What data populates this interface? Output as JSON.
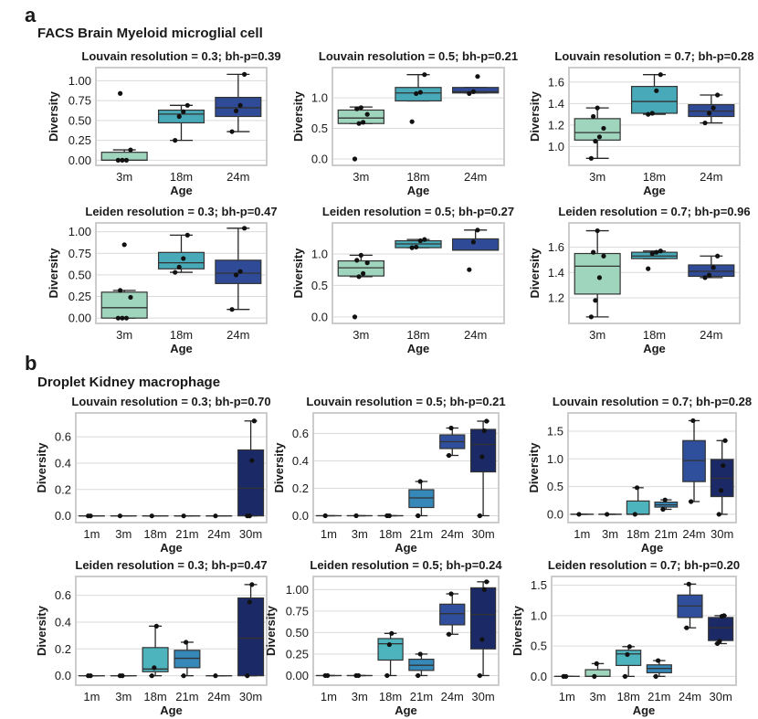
{
  "figure": {
    "sections": [
      {
        "letter": "a",
        "title": "FACS Brain Myeloid microglial cell"
      },
      {
        "letter": "b",
        "title": "Droplet Kidney macrophage"
      }
    ]
  },
  "colors": {
    "1m": "#c7e9c0",
    "3m": "#9fd5bd",
    "18m": "#4db3bd",
    "21m": "#3688b9",
    "24m": "#2f4e9c",
    "30m": "#1b2a66",
    "a_3m": "#9fd5bd",
    "a_18m": "#48aab8",
    "a_24m": "#2f4b98",
    "grid": "#d9d9d9",
    "frame": "#cccccc"
  },
  "chart_data": [
    {
      "id": "a-louvain-0.3",
      "section": "a",
      "type": "box",
      "title": "Louvain resolution = 0.3; bh-p=0.39",
      "xlabel": "Age",
      "ylabel": "Diversity",
      "categories": [
        "3m",
        "18m",
        "24m"
      ],
      "yticks": [
        0.0,
        0.25,
        0.5,
        0.75,
        1.0
      ],
      "ytick_labels": [
        "0.00",
        "0.25",
        "0.50",
        "0.75",
        "1.00"
      ],
      "ylim": [
        -0.03,
        1.13
      ],
      "grid": true,
      "boxes": [
        {
          "q1": 0.0,
          "median": 0.0,
          "q3": 0.1,
          "whisker_low": 0.0,
          "whisker_high": 0.13,
          "points": [
            0.0,
            0.0,
            0.0,
            0.13,
            0.84
          ]
        },
        {
          "q1": 0.47,
          "median": 0.58,
          "q3": 0.63,
          "whisker_low": 0.25,
          "whisker_high": 0.69,
          "points": [
            0.25,
            0.55,
            0.61,
            0.69
          ]
        },
        {
          "q1": 0.55,
          "median": 0.66,
          "q3": 0.79,
          "whisker_low": 0.36,
          "whisker_high": 1.08,
          "points": [
            0.36,
            0.62,
            0.69,
            1.08
          ]
        }
      ]
    },
    {
      "id": "a-louvain-0.5",
      "section": "a",
      "type": "box",
      "title": "Louvain resolution = 0.5; bh-p=0.21",
      "xlabel": "Age",
      "ylabel": "Diversity",
      "categories": [
        "3m",
        "18m",
        "24m"
      ],
      "yticks": [
        0.0,
        0.5,
        1.0
      ],
      "ytick_labels": [
        "0.0",
        "0.5",
        "1.0"
      ],
      "ylim": [
        -0.06,
        1.45
      ],
      "grid": true,
      "boxes": [
        {
          "q1": 0.58,
          "median": 0.67,
          "q3": 0.8,
          "whisker_low": 0.58,
          "whisker_high": 0.85,
          "points": [
            0.0,
            0.58,
            0.6,
            0.73,
            0.82,
            0.84
          ]
        },
        {
          "q1": 0.95,
          "median": 1.08,
          "q3": 1.17,
          "whisker_low": 0.95,
          "whisker_high": 1.38,
          "points": [
            0.61,
            1.07,
            1.09,
            1.38
          ]
        },
        {
          "q1": 1.08,
          "median": 1.1,
          "q3": 1.17,
          "whisker_low": 1.08,
          "whisker_high": 1.17,
          "points": [
            1.07,
            1.1,
            1.35
          ]
        }
      ]
    },
    {
      "id": "a-louvain-0.7",
      "section": "a",
      "type": "box",
      "title": "Louvain resolution = 0.7; bh-p=0.28",
      "xlabel": "Age",
      "ylabel": "Diversity",
      "categories": [
        "3m",
        "18m",
        "24m"
      ],
      "yticks": [
        1.0,
        1.2,
        1.4,
        1.6
      ],
      "ytick_labels": [
        "1.0",
        "1.2",
        "1.4",
        "1.6"
      ],
      "ylim": [
        0.85,
        1.71
      ],
      "grid": true,
      "boxes": [
        {
          "q1": 1.06,
          "median": 1.13,
          "q3": 1.26,
          "whisker_low": 0.89,
          "whisker_high": 1.36,
          "points": [
            0.89,
            1.05,
            1.09,
            1.17,
            1.28,
            1.36
          ]
        },
        {
          "q1": 1.31,
          "median": 1.42,
          "q3": 1.56,
          "whisker_low": 1.3,
          "whisker_high": 1.67,
          "points": [
            1.3,
            1.31,
            1.52,
            1.67
          ]
        },
        {
          "q1": 1.28,
          "median": 1.33,
          "q3": 1.39,
          "whisker_low": 1.22,
          "whisker_high": 1.48,
          "points": [
            1.22,
            1.31,
            1.36,
            1.48
          ]
        }
      ]
    },
    {
      "id": "a-leiden-0.3",
      "section": "a",
      "type": "box",
      "title": "Leiden resolution = 0.3; bh-p=0.47",
      "xlabel": "Age",
      "ylabel": "Diversity",
      "categories": [
        "3m",
        "18m",
        "24m"
      ],
      "yticks": [
        0.0,
        0.25,
        0.5,
        0.75,
        1.0
      ],
      "ytick_labels": [
        "0.00",
        "0.25",
        "0.50",
        "0.75",
        "1.00"
      ],
      "ylim": [
        -0.03,
        1.07
      ],
      "grid": true,
      "boxes": [
        {
          "q1": 0.0,
          "median": 0.12,
          "q3": 0.3,
          "whisker_low": 0.0,
          "whisker_high": 0.32,
          "points": [
            0.0,
            0.0,
            0.0,
            0.24,
            0.32,
            0.85
          ]
        },
        {
          "q1": 0.57,
          "median": 0.64,
          "q3": 0.76,
          "whisker_low": 0.53,
          "whisker_high": 0.96,
          "points": [
            0.53,
            0.59,
            0.69,
            0.96
          ]
        },
        {
          "q1": 0.4,
          "median": 0.52,
          "q3": 0.67,
          "whisker_low": 0.1,
          "whisker_high": 1.04,
          "points": [
            0.1,
            0.5,
            0.54,
            1.04
          ]
        }
      ]
    },
    {
      "id": "a-leiden-0.5",
      "section": "a",
      "type": "box",
      "title": "Leiden resolution = 0.5; bh-p=0.27",
      "xlabel": "Age",
      "ylabel": "Diversity",
      "categories": [
        "3m",
        "18m",
        "24m"
      ],
      "yticks": [
        0.0,
        0.5,
        1.0
      ],
      "ytick_labels": [
        "0.0",
        "0.5",
        "1.0"
      ],
      "ylim": [
        -0.06,
        1.45
      ],
      "grid": true,
      "boxes": [
        {
          "q1": 0.65,
          "median": 0.78,
          "q3": 0.89,
          "whisker_low": 0.64,
          "whisker_high": 0.98,
          "points": [
            0.0,
            0.64,
            0.69,
            0.86,
            0.9,
            0.98
          ]
        },
        {
          "q1": 1.1,
          "median": 1.16,
          "q3": 1.21,
          "whisker_low": 1.1,
          "whisker_high": 1.23,
          "points": [
            1.1,
            1.11,
            1.21,
            1.23
          ]
        },
        {
          "q1": 1.06,
          "median": 1.06,
          "q3": 1.24,
          "whisker_low": 1.06,
          "whisker_high": 1.38,
          "points": [
            0.75,
            1.19,
            1.38
          ]
        }
      ]
    },
    {
      "id": "a-leiden-0.7",
      "section": "a",
      "type": "box",
      "title": "Leiden resolution = 0.7; bh-p=0.96",
      "xlabel": "Age",
      "ylabel": "Diversity",
      "categories": [
        "3m",
        "18m",
        "24m"
      ],
      "yticks": [
        1.2,
        1.4,
        1.6
      ],
      "ytick_labels": [
        "1.2",
        "1.4",
        "1.6"
      ],
      "ylim": [
        1.02,
        1.77
      ],
      "grid": true,
      "boxes": [
        {
          "q1": 1.23,
          "median": 1.45,
          "q3": 1.55,
          "whisker_low": 1.05,
          "whisker_high": 1.73,
          "points": [
            1.05,
            1.18,
            1.36,
            1.53,
            1.56,
            1.73
          ]
        },
        {
          "q1": 1.51,
          "median": 1.53,
          "q3": 1.56,
          "whisker_low": 1.51,
          "whisker_high": 1.57,
          "points": [
            1.43,
            1.55,
            1.56,
            1.57
          ]
        },
        {
          "q1": 1.37,
          "median": 1.41,
          "q3": 1.46,
          "whisker_low": 1.36,
          "whisker_high": 1.53,
          "points": [
            1.36,
            1.38,
            1.44,
            1.53
          ]
        }
      ]
    },
    {
      "id": "b-louvain-0.3",
      "section": "b",
      "type": "box",
      "title": "Louvain resolution = 0.3; bh-p=0.70",
      "xlabel": "Age",
      "ylabel": "Diversity",
      "categories": [
        "1m",
        "3m",
        "18m",
        "21m",
        "24m",
        "30m"
      ],
      "yticks": [
        0.0,
        0.2,
        0.4,
        0.6
      ],
      "ytick_labels": [
        "0.0",
        "0.2",
        "0.4",
        "0.6"
      ],
      "ylim": [
        -0.03,
        0.76
      ],
      "grid": true,
      "boxes": [
        {
          "q1": 0.0,
          "median": 0.0,
          "q3": 0.0,
          "whisker_low": 0.0,
          "whisker_high": 0.0,
          "points": [
            0.0,
            0.0
          ]
        },
        {
          "q1": 0.0,
          "median": 0.0,
          "q3": 0.0,
          "whisker_low": 0.0,
          "whisker_high": 0.0,
          "points": [
            0.0
          ]
        },
        {
          "q1": 0.0,
          "median": 0.0,
          "q3": 0.0,
          "whisker_low": 0.0,
          "whisker_high": 0.0,
          "points": [
            0.0
          ]
        },
        {
          "q1": 0.0,
          "median": 0.0,
          "q3": 0.0,
          "whisker_low": 0.0,
          "whisker_high": 0.0,
          "points": [
            0.0
          ]
        },
        {
          "q1": 0.0,
          "median": 0.0,
          "q3": 0.0,
          "whisker_low": 0.0,
          "whisker_high": 0.0,
          "points": [
            0.0
          ]
        },
        {
          "q1": 0.0,
          "median": 0.21,
          "q3": 0.5,
          "whisker_low": 0.0,
          "whisker_high": 0.72,
          "points": [
            0.0,
            0.0,
            0.42,
            0.72
          ]
        }
      ]
    },
    {
      "id": "b-louvain-0.5",
      "section": "b",
      "type": "box",
      "title": "Louvain resolution = 0.5; bh-p=0.21",
      "xlabel": "Age",
      "ylabel": "Diversity",
      "categories": [
        "1m",
        "3m",
        "18m",
        "21m",
        "24m",
        "30m"
      ],
      "yticks": [
        0.0,
        0.2,
        0.4,
        0.6
      ],
      "ytick_labels": [
        "0.0",
        "0.2",
        "0.4",
        "0.6"
      ],
      "ylim": [
        -0.03,
        0.73
      ],
      "grid": true,
      "boxes": [
        {
          "q1": 0.0,
          "median": 0.0,
          "q3": 0.0,
          "whisker_low": 0.0,
          "whisker_high": 0.0,
          "points": [
            0.0
          ]
        },
        {
          "q1": 0.0,
          "median": 0.0,
          "q3": 0.0,
          "whisker_low": 0.0,
          "whisker_high": 0.0,
          "points": [
            0.0
          ]
        },
        {
          "q1": 0.0,
          "median": 0.0,
          "q3": 0.0,
          "whisker_low": 0.0,
          "whisker_high": 0.0,
          "points": [
            0.0,
            0.0
          ]
        },
        {
          "q1": 0.06,
          "median": 0.13,
          "q3": 0.19,
          "whisker_low": 0.0,
          "whisker_high": 0.25,
          "points": [
            0.0,
            0.25
          ]
        },
        {
          "q1": 0.49,
          "median": 0.54,
          "q3": 0.59,
          "whisker_low": 0.44,
          "whisker_high": 0.64,
          "points": [
            0.44,
            0.64
          ]
        },
        {
          "q1": 0.32,
          "median": 0.52,
          "q3": 0.63,
          "whisker_low": 0.0,
          "whisker_high": 0.69,
          "points": [
            0.0,
            0.43,
            0.62,
            0.69
          ]
        }
      ]
    },
    {
      "id": "b-louvain-0.7",
      "section": "b",
      "type": "box",
      "title": "Louvain resolution = 0.7; bh-p=0.28",
      "xlabel": "Age",
      "ylabel": "Diversity",
      "categories": [
        "1m",
        "3m",
        "18m",
        "21m",
        "24m",
        "30m"
      ],
      "yticks": [
        0.0,
        0.5,
        1.0,
        1.5
      ],
      "ytick_labels": [
        "0.0",
        "0.5",
        "1.0",
        "1.5"
      ],
      "ylim": [
        -0.1,
        1.78
      ],
      "grid": true,
      "boxes": [
        {
          "q1": 0.0,
          "median": 0.0,
          "q3": 0.0,
          "whisker_low": 0.0,
          "whisker_high": 0.0,
          "points": [
            0.0
          ]
        },
        {
          "q1": 0.0,
          "median": 0.0,
          "q3": 0.0,
          "whisker_low": 0.0,
          "whisker_high": 0.0,
          "points": [
            0.0
          ]
        },
        {
          "q1": 0.0,
          "median": 0.0,
          "q3": 0.24,
          "whisker_low": 0.0,
          "whisker_high": 0.48,
          "points": [
            0.0,
            0.48
          ]
        },
        {
          "q1": 0.13,
          "median": 0.17,
          "q3": 0.22,
          "whisker_low": 0.09,
          "whisker_high": 0.26,
          "points": [
            0.09,
            0.26
          ]
        },
        {
          "q1": 0.59,
          "median": 0.97,
          "q3": 1.33,
          "whisker_low": 0.23,
          "whisker_high": 1.69,
          "points": [
            0.23,
            1.69
          ]
        },
        {
          "q1": 0.32,
          "median": 0.65,
          "q3": 0.99,
          "whisker_low": 0.0,
          "whisker_high": 1.33,
          "points": [
            0.0,
            0.43,
            0.88,
            1.33
          ]
        }
      ]
    },
    {
      "id": "b-leiden-0.3",
      "section": "b",
      "type": "box",
      "title": "Leiden resolution = 0.3; bh-p=0.47",
      "xlabel": "Age",
      "ylabel": "Diversity",
      "categories": [
        "1m",
        "3m",
        "18m",
        "21m",
        "24m",
        "30m"
      ],
      "yticks": [
        0.0,
        0.2,
        0.4,
        0.6
      ],
      "ytick_labels": [
        "0.0",
        "0.2",
        "0.4",
        "0.6"
      ],
      "ylim": [
        -0.05,
        0.72
      ],
      "grid": true,
      "boxes": [
        {
          "q1": 0.0,
          "median": 0.0,
          "q3": 0.0,
          "whisker_low": 0.0,
          "whisker_high": 0.0,
          "points": [
            0.0,
            0.0
          ]
        },
        {
          "q1": 0.0,
          "median": 0.0,
          "q3": 0.0,
          "whisker_low": 0.0,
          "whisker_high": 0.0,
          "points": [
            0.0,
            0.0
          ]
        },
        {
          "q1": 0.03,
          "median": 0.05,
          "q3": 0.21,
          "whisker_low": 0.0,
          "whisker_high": 0.37,
          "points": [
            0.0,
            0.06,
            0.37
          ]
        },
        {
          "q1": 0.06,
          "median": 0.13,
          "q3": 0.19,
          "whisker_low": 0.0,
          "whisker_high": 0.25,
          "points": [
            0.0,
            0.25
          ]
        },
        {
          "q1": 0.0,
          "median": 0.0,
          "q3": 0.0,
          "whisker_low": 0.0,
          "whisker_high": 0.0,
          "points": [
            0.0
          ]
        },
        {
          "q1": 0.0,
          "median": 0.28,
          "q3": 0.58,
          "whisker_low": 0.0,
          "whisker_high": 0.68,
          "points": [
            0.0,
            0.55,
            0.68
          ]
        }
      ]
    },
    {
      "id": "b-leiden-0.5",
      "section": "b",
      "type": "box",
      "title": "Leiden resolution = 0.5; bh-p=0.24",
      "xlabel": "Age",
      "ylabel": "Diversity",
      "categories": [
        "1m",
        "3m",
        "18m",
        "21m",
        "24m",
        "30m"
      ],
      "yticks": [
        0.0,
        0.25,
        0.5,
        0.75,
        1.0
      ],
      "ytick_labels": [
        "0.00",
        "0.25",
        "0.50",
        "0.75",
        "1.00"
      ],
      "ylim": [
        -0.08,
        1.12
      ],
      "grid": true,
      "boxes": [
        {
          "q1": 0.0,
          "median": 0.0,
          "q3": 0.0,
          "whisker_low": 0.0,
          "whisker_high": 0.0,
          "points": [
            0.0,
            0.0
          ]
        },
        {
          "q1": 0.0,
          "median": 0.0,
          "q3": 0.0,
          "whisker_low": 0.0,
          "whisker_high": 0.0,
          "points": [
            0.0,
            0.0
          ]
        },
        {
          "q1": 0.18,
          "median": 0.37,
          "q3": 0.43,
          "whisker_low": 0.0,
          "whisker_high": 0.49,
          "points": [
            0.0,
            0.36,
            0.49
          ]
        },
        {
          "q1": 0.06,
          "median": 0.12,
          "q3": 0.19,
          "whisker_low": 0.0,
          "whisker_high": 0.25,
          "points": [
            0.0,
            0.25
          ]
        },
        {
          "q1": 0.59,
          "median": 0.72,
          "q3": 0.83,
          "whisker_low": 0.48,
          "whisker_high": 0.95,
          "points": [
            0.48,
            0.95
          ]
        },
        {
          "q1": 0.31,
          "median": 0.71,
          "q3": 1.02,
          "whisker_low": 0.0,
          "whisker_high": 1.09,
          "points": [
            0.0,
            0.42,
            1.0,
            1.09
          ]
        }
      ]
    },
    {
      "id": "b-leiden-0.7",
      "section": "b",
      "type": "box",
      "title": "Leiden resolution = 0.7; bh-p=0.20",
      "xlabel": "Age",
      "ylabel": "Diversity",
      "categories": [
        "1m",
        "3m",
        "18m",
        "21m",
        "24m",
        "30m"
      ],
      "yticks": [
        0.0,
        0.5,
        1.0,
        1.5
      ],
      "ytick_labels": [
        "0.0",
        "0.5",
        "1.0",
        "1.5"
      ],
      "ylim": [
        -0.1,
        1.6
      ],
      "grid": true,
      "boxes": [
        {
          "q1": 0.0,
          "median": 0.0,
          "q3": 0.0,
          "whisker_low": 0.0,
          "whisker_high": 0.0,
          "points": [
            0.0,
            0.0
          ]
        },
        {
          "q1": 0.0,
          "median": 0.0,
          "q3": 0.11,
          "whisker_low": 0.0,
          "whisker_high": 0.21,
          "points": [
            0.0,
            0.21
          ]
        },
        {
          "q1": 0.18,
          "median": 0.37,
          "q3": 0.43,
          "whisker_low": 0.0,
          "whisker_high": 0.49,
          "points": [
            0.0,
            0.36,
            0.49
          ]
        },
        {
          "q1": 0.06,
          "median": 0.13,
          "q3": 0.19,
          "whisker_low": 0.0,
          "whisker_high": 0.26,
          "points": [
            0.0,
            0.26
          ]
        },
        {
          "q1": 0.97,
          "median": 1.16,
          "q3": 1.34,
          "whisker_low": 0.8,
          "whisker_high": 1.52,
          "points": [
            0.8,
            1.52
          ]
        },
        {
          "q1": 0.59,
          "median": 0.8,
          "q3": 0.97,
          "whisker_low": 0.54,
          "whisker_high": 1.0,
          "points": [
            0.54,
            0.58,
            0.99,
            1.0
          ]
        }
      ]
    }
  ]
}
